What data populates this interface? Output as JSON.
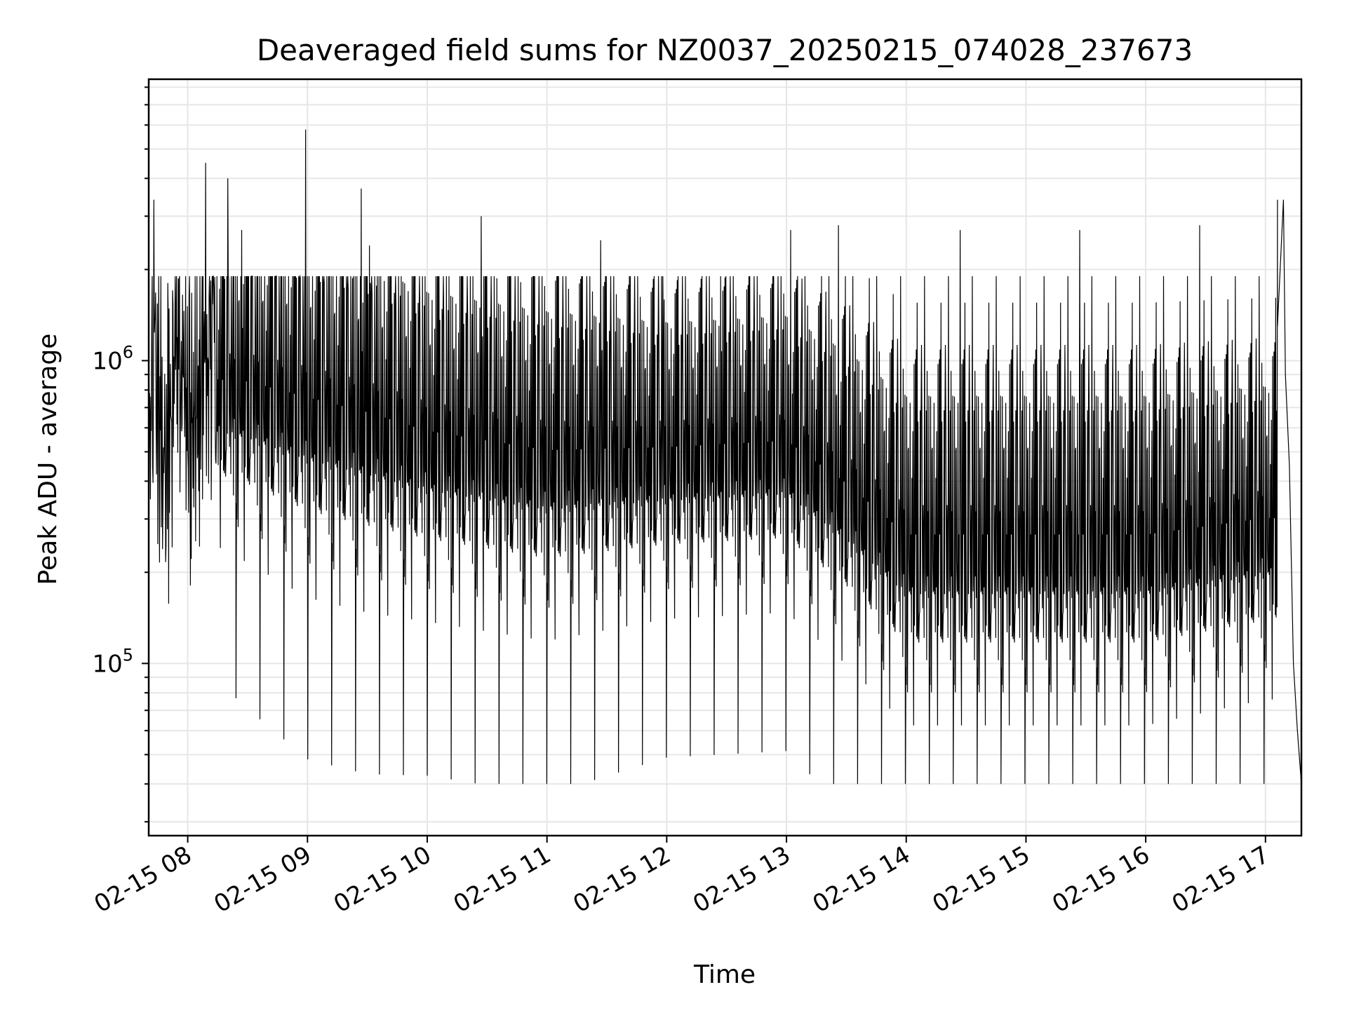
{
  "chart_data": {
    "type": "line",
    "title": "Deaveraged field sums for NZ0037_20250215_074028_237673",
    "xlabel": "Time",
    "ylabel": "Peak ADU - average",
    "yscale": "log",
    "xlim": [
      "2025-02-15 07:40:28",
      "2025-02-15 17:18:00"
    ],
    "ylim": [
      27000,
      8500000
    ],
    "x_ticks": [
      {
        "value": "2025-02-15 08:00",
        "label": "02-15 08"
      },
      {
        "value": "2025-02-15 09:00",
        "label": "02-15 09"
      },
      {
        "value": "2025-02-15 10:00",
        "label": "02-15 10"
      },
      {
        "value": "2025-02-15 11:00",
        "label": "02-15 11"
      },
      {
        "value": "2025-02-15 12:00",
        "label": "02-15 12"
      },
      {
        "value": "2025-02-15 13:00",
        "label": "02-15 13"
      },
      {
        "value": "2025-02-15 14:00",
        "label": "02-15 14"
      },
      {
        "value": "2025-02-15 15:00",
        "label": "02-15 15"
      },
      {
        "value": "2025-02-15 16:00",
        "label": "02-15 16"
      },
      {
        "value": "2025-02-15 17:00",
        "label": "02-15 17"
      }
    ],
    "y_ticks": [
      {
        "value": 100000,
        "base": "10",
        "exp": "5"
      },
      {
        "value": 1000000,
        "base": "10",
        "exp": "6"
      }
    ],
    "grid": true,
    "legend": "none",
    "series": [
      {
        "color": "#000000",
        "envelope": [
          {
            "t": "2025-02-15 07:40",
            "median": 650000,
            "spread": 0.28
          },
          {
            "t": "2025-02-15 08:00",
            "median": 700000,
            "spread": 0.32
          },
          {
            "t": "2025-02-15 08:30",
            "median": 650000,
            "spread": 0.38
          },
          {
            "t": "2025-02-15 09:00",
            "median": 560000,
            "spread": 0.42
          },
          {
            "t": "2025-02-15 09:30",
            "median": 500000,
            "spread": 0.42
          },
          {
            "t": "2025-02-15 10:00",
            "median": 440000,
            "spread": 0.4
          },
          {
            "t": "2025-02-15 11:00",
            "median": 380000,
            "spread": 0.4
          },
          {
            "t": "2025-02-15 12:00",
            "median": 400000,
            "spread": 0.36
          },
          {
            "t": "2025-02-15 13:00",
            "median": 420000,
            "spread": 0.36
          },
          {
            "t": "2025-02-15 13:30",
            "median": 300000,
            "spread": 0.38
          },
          {
            "t": "2025-02-15 14:00",
            "median": 200000,
            "spread": 0.4
          },
          {
            "t": "2025-02-15 15:00",
            "median": 200000,
            "spread": 0.4
          },
          {
            "t": "2025-02-15 16:00",
            "median": 200000,
            "spread": 0.4
          },
          {
            "t": "2025-02-15 17:00",
            "median": 230000,
            "spread": 0.38
          }
        ],
        "spikes": [
          {
            "t": "2025-02-15 07:43",
            "y": 3400000
          },
          {
            "t": "2025-02-15 08:09",
            "y": 4500000
          },
          {
            "t": "2025-02-15 08:20",
            "y": 4000000
          },
          {
            "t": "2025-02-15 08:27",
            "y": 2700000
          },
          {
            "t": "2025-02-15 08:59",
            "y": 5800000
          },
          {
            "t": "2025-02-15 09:27",
            "y": 3700000
          },
          {
            "t": "2025-02-15 09:31",
            "y": 2400000
          },
          {
            "t": "2025-02-15 10:27",
            "y": 3000000
          },
          {
            "t": "2025-02-15 11:27",
            "y": 2500000
          },
          {
            "t": "2025-02-15 11:58",
            "y": 1900000
          },
          {
            "t": "2025-02-15 12:27",
            "y": 1900000
          },
          {
            "t": "2025-02-15 13:02",
            "y": 2700000
          },
          {
            "t": "2025-02-15 13:26",
            "y": 2800000
          },
          {
            "t": "2025-02-15 14:27",
            "y": 2700000
          },
          {
            "t": "2025-02-15 15:27",
            "y": 2700000
          },
          {
            "t": "2025-02-15 16:27",
            "y": 2800000
          },
          {
            "t": "2025-02-15 17:09",
            "y": 3400000
          }
        ],
        "end_tail": [
          {
            "t": "2025-02-15 17:06",
            "y": 1300000
          },
          {
            "t": "2025-02-15 17:09",
            "y": 3400000
          },
          {
            "t": "2025-02-15 17:10",
            "y": 900000
          },
          {
            "t": "2025-02-15 17:12",
            "y": 450000
          },
          {
            "t": "2025-02-15 17:14",
            "y": 100000
          },
          {
            "t": "2025-02-15 17:16",
            "y": 60000
          },
          {
            "t": "2025-02-15 17:18",
            "y": 40000
          }
        ]
      }
    ]
  }
}
